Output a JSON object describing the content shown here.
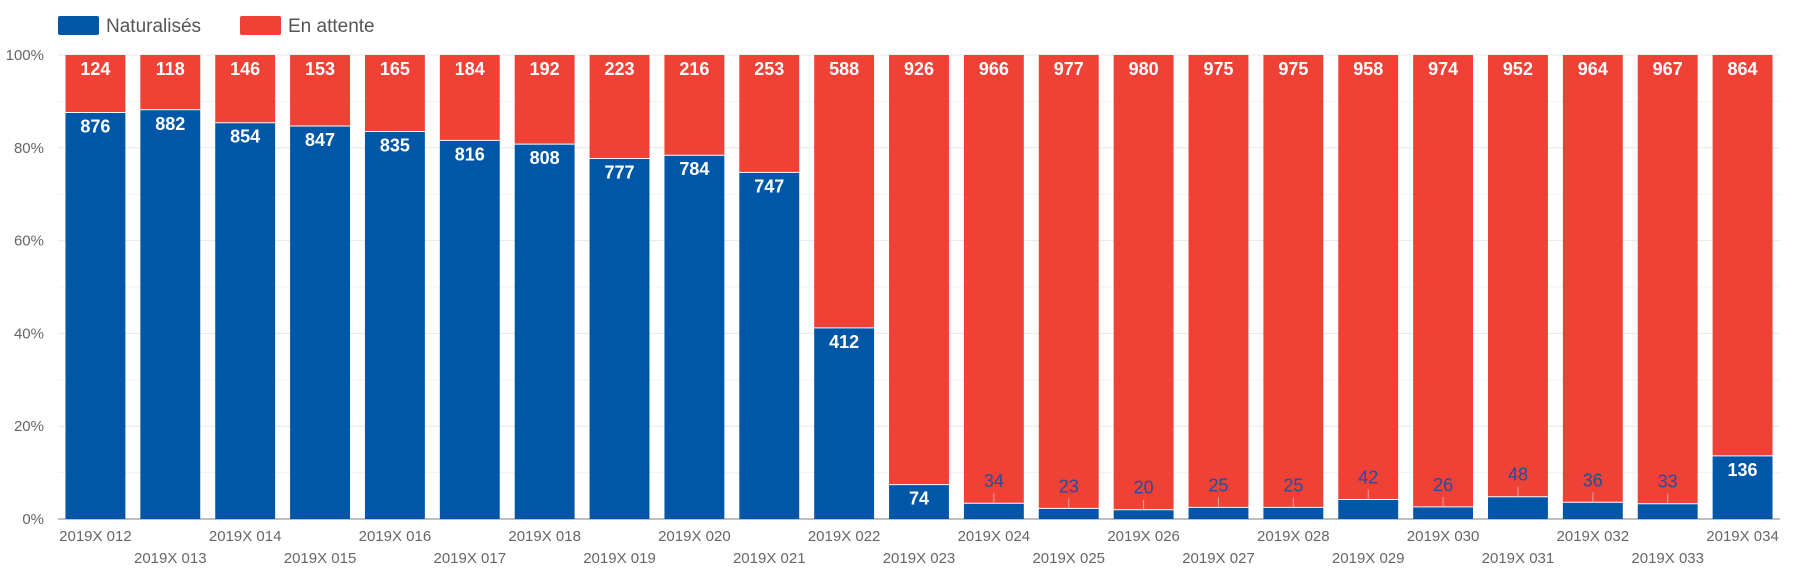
{
  "chart_data": {
    "type": "bar",
    "stacked": "percent",
    "categories": [
      "2019X 012",
      "2019X 013",
      "2019X 014",
      "2019X 015",
      "2019X 016",
      "2019X 017",
      "2019X 018",
      "2019X 019",
      "2019X 020",
      "2019X 021",
      "2019X 022",
      "2019X 023",
      "2019X 024",
      "2019X 025",
      "2019X 026",
      "2019X 027",
      "2019X 028",
      "2019X 029",
      "2019X 030",
      "2019X 031",
      "2019X 032",
      "2019X 033",
      "2019X 034"
    ],
    "series": [
      {
        "name": "Naturalisés",
        "color": "#0057A8",
        "values": [
          876,
          882,
          854,
          847,
          835,
          816,
          808,
          777,
          784,
          747,
          412,
          74,
          34,
          23,
          20,
          25,
          25,
          42,
          26,
          48,
          36,
          33,
          136
        ]
      },
      {
        "name": "En attente",
        "color": "#EF4136",
        "values": [
          124,
          118,
          146,
          153,
          165,
          184,
          192,
          223,
          216,
          253,
          588,
          926,
          966,
          977,
          980,
          975,
          975,
          958,
          974,
          952,
          964,
          967,
          864
        ]
      }
    ],
    "y_ticks": [
      "0%",
      "20%",
      "40%",
      "60%",
      "80%",
      "100%"
    ],
    "ylim": [
      0,
      100
    ],
    "legend_position": "top-left",
    "grid": true
  }
}
